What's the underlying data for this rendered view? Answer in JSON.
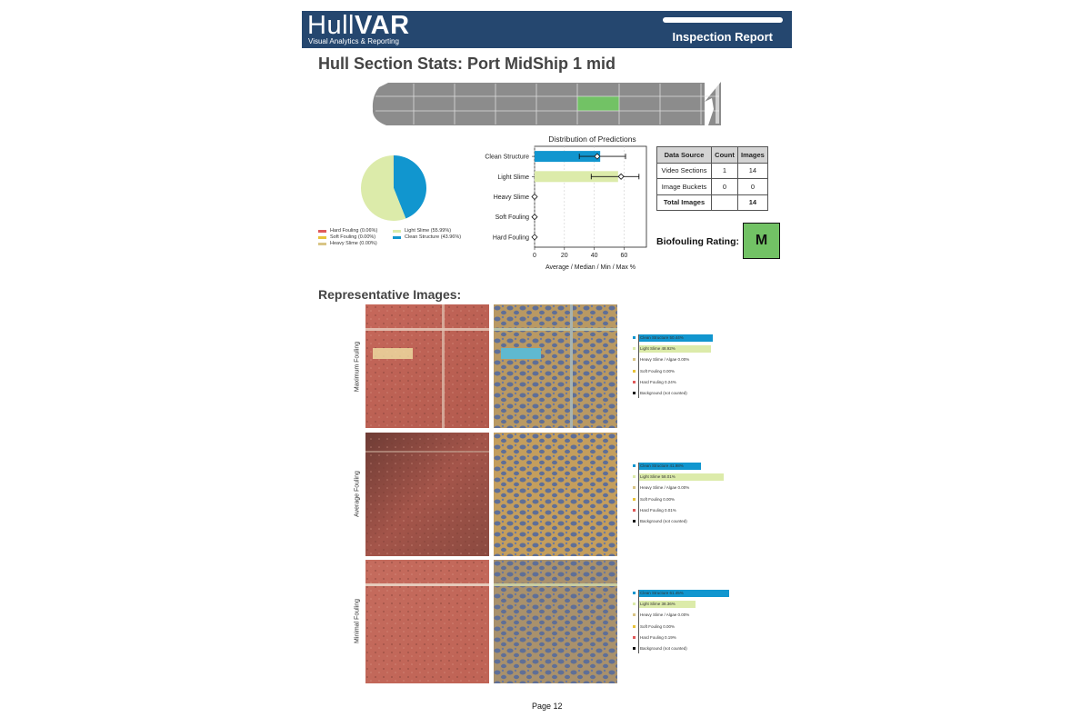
{
  "header": {
    "brand_light": "Hull",
    "brand_bold": "VAR",
    "brand_sub": "Visual Analytics & Reporting",
    "report_title": "Inspection Report"
  },
  "section_title": "Hull Section Stats: Port MidShip 1 mid",
  "pie_legend": [
    {
      "label": "Hard Fouling (0.06%)",
      "color": "#e05a5a"
    },
    {
      "label": "Soft Fouling (0.00%)",
      "color": "#e8c33a"
    },
    {
      "label": "Heavy Slime (0.00%)",
      "color": "#d9c586"
    },
    {
      "label": "Light Slime (55.99%)",
      "color": "#dcebaa"
    },
    {
      "label": "Clean Structure (43.96%)",
      "color": "#1196cf"
    }
  ],
  "chart_data": {
    "type": "bar",
    "title": "Distribution of Predictions",
    "xlabel": "Average / Median / Min / Max %",
    "categories": [
      "Clean Structure",
      "Light Slime",
      "Heavy Slime",
      "Soft Fouling",
      "Hard Fouling"
    ],
    "values": [
      44,
      56,
      0,
      0,
      0
    ],
    "median": [
      42,
      58,
      0,
      0,
      0
    ],
    "min": [
      30,
      38,
      0,
      0,
      0
    ],
    "max": [
      61,
      70,
      0,
      0,
      0
    ],
    "colors": [
      "#1196cf",
      "#dcebaa",
      "#d9c586",
      "#e8c33a",
      "#e05a5a"
    ],
    "xlim": [
      0,
      75
    ],
    "xticks": [
      0,
      20,
      40,
      60
    ],
    "grid": true
  },
  "data_source_table": {
    "headers": [
      "Data Source",
      "Count",
      "Images"
    ],
    "rows": [
      [
        "Video Sections",
        "1",
        "14"
      ],
      [
        "Image Buckets",
        "0",
        "0"
      ],
      [
        "Total Images",
        "",
        "14"
      ]
    ]
  },
  "rating": {
    "label": "Biofouling Rating:",
    "value": "M",
    "color": "#72c265"
  },
  "rep_title": "Representative Images:",
  "rep_rows": [
    {
      "label": "Maximum Fouling",
      "bars": [
        {
          "label": "Clean Structure 50.44%",
          "value": 50.44,
          "color": "#1196cf"
        },
        {
          "label": "Light Slime 48.92%",
          "value": 48.92,
          "color": "#dcebaa"
        },
        {
          "label": "Heavy Slime / Algae 0.00%",
          "value": 0,
          "color": "#d9c586"
        },
        {
          "label": "Soft Fouling 0.00%",
          "value": 0,
          "color": "#e8c33a"
        },
        {
          "label": "Hard Fouling 0.24%",
          "value": 0.24,
          "color": "#e05a5a"
        },
        {
          "label": "Background (not counted)",
          "value": 0,
          "color": "#111111"
        }
      ]
    },
    {
      "label": "Average Fouling",
      "bars": [
        {
          "label": "Clean Structure 41.98%",
          "value": 41.98,
          "color": "#1196cf"
        },
        {
          "label": "Light Slime 58.01%",
          "value": 58.01,
          "color": "#dcebaa"
        },
        {
          "label": "Heavy Slime / Algae 0.00%",
          "value": 0,
          "color": "#d9c586"
        },
        {
          "label": "Soft Fouling 0.00%",
          "value": 0,
          "color": "#e8c33a"
        },
        {
          "label": "Hard Fouling 0.01%",
          "value": 0.01,
          "color": "#e05a5a"
        },
        {
          "label": "Background (not counted)",
          "value": 0,
          "color": "#111111"
        }
      ]
    },
    {
      "label": "Minimal Fouling",
      "bars": [
        {
          "label": "Clean Structure 61.45%",
          "value": 61.45,
          "color": "#1196cf"
        },
        {
          "label": "Light Slime 38.36%",
          "value": 38.36,
          "color": "#dcebaa"
        },
        {
          "label": "Heavy Slime / Algae 0.00%",
          "value": 0,
          "color": "#d9c586"
        },
        {
          "label": "Soft Fouling 0.00%",
          "value": 0,
          "color": "#e8c33a"
        },
        {
          "label": "Hard Fouling 0.19%",
          "value": 0.19,
          "color": "#e05a5a"
        },
        {
          "label": "Background (not counted)",
          "value": 0,
          "color": "#111111"
        }
      ]
    }
  ],
  "page_number": "Page 12"
}
